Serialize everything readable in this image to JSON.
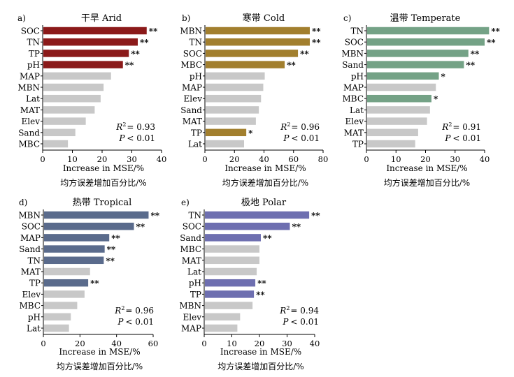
{
  "chart_data": [
    {
      "type": "bar",
      "orientation": "horizontal",
      "panel": "a)",
      "title": "干旱 Arid",
      "categories": [
        "SOC",
        "TN",
        "TP",
        "pH",
        "MAP",
        "MBN",
        "Lat",
        "MAT",
        "Elev",
        "Sand",
        "MBC"
      ],
      "values": [
        35,
        32,
        29,
        27,
        23,
        20.5,
        19.5,
        17.5,
        14.5,
        11,
        8.5
      ],
      "significance": [
        "**",
        "**",
        "**",
        "**",
        "",
        "",
        "",
        "",
        "",
        "",
        ""
      ],
      "xlim": [
        0,
        40
      ],
      "xticks": [
        0,
        10,
        20,
        30,
        40
      ],
      "xlabel": "Increase in MSE/%",
      "xlabel_cn": "均方误差增加百分比/%",
      "r2_label": "R",
      "r2_exp": "2",
      "r2_value": "= 0.93",
      "p_label": "P",
      "p_value": "< 0.01",
      "color": "#8b1a1a"
    },
    {
      "type": "bar",
      "orientation": "horizontal",
      "panel": "b)",
      "title": "寒带 Cold",
      "categories": [
        "MBN",
        "TN",
        "SOC",
        "MBC",
        "pH",
        "MAP",
        "Elev",
        "Sand",
        "MAT",
        "TP",
        "Lat"
      ],
      "values": [
        71,
        71,
        63,
        54,
        40.5,
        39.5,
        38,
        36.5,
        34.5,
        28,
        26.5
      ],
      "significance": [
        "**",
        "**",
        "**",
        "**",
        "",
        "",
        "",
        "",
        "",
        "*",
        ""
      ],
      "xlim": [
        0,
        80
      ],
      "xticks": [
        0,
        20,
        40,
        60,
        80
      ],
      "xlabel": "Increase in MSE/%",
      "xlabel_cn": "均方误差增加百分比/%",
      "r2_label": "R",
      "r2_exp": "2",
      "r2_value": "= 0.96",
      "p_label": "P",
      "p_value": "< 0.01",
      "color": "#a27f2e"
    },
    {
      "type": "bar",
      "orientation": "horizontal",
      "panel": "c)",
      "title": "温带 Temperate",
      "categories": [
        "TN",
        "SOC",
        "MBN",
        "Sand",
        "pH",
        "MAP",
        "MBC",
        "Lat",
        "Elev",
        "MAT",
        "TP"
      ],
      "values": [
        41.5,
        40,
        34.5,
        33,
        24.5,
        23.5,
        22,
        21.5,
        20.5,
        17.5,
        16.5
      ],
      "significance": [
        "**",
        "**",
        "**",
        "**",
        "*",
        "",
        "*",
        "",
        "",
        "",
        ""
      ],
      "xlim": [
        0,
        40
      ],
      "xticks": [
        0,
        10,
        20,
        30,
        40
      ],
      "xlabel": "Increase in MSE/%",
      "xlabel_cn": "均方误差增加百分比/%",
      "r2_label": "R",
      "r2_exp": "2",
      "r2_value": "= 0.91",
      "p_label": "P",
      "p_value": "< 0.01",
      "color": "#74a286"
    },
    {
      "type": "bar",
      "orientation": "horizontal",
      "panel": "d)",
      "title": "热带 Tropical",
      "categories": [
        "MBN",
        "SOC",
        "MAP",
        "Sand",
        "TN",
        "MAT",
        "TP",
        "Elev",
        "MBC",
        "pH",
        "Lat"
      ],
      "values": [
        57.5,
        49.5,
        36,
        33.5,
        33,
        25.5,
        24.5,
        22.5,
        18.5,
        15,
        14
      ],
      "significance": [
        "**",
        "**",
        "**",
        "**",
        "**",
        "",
        "**",
        "",
        "",
        "",
        ""
      ],
      "xlim": [
        0,
        60
      ],
      "xticks": [
        0,
        20,
        40,
        60
      ],
      "xlabel": "Increase in MSE/%",
      "xlabel_cn": "均方误差增加百分比/%",
      "r2_label": "R",
      "r2_exp": "2",
      "r2_value": "= 0.96",
      "p_label": "P",
      "p_value": "< 0.01",
      "color": "#5a6b8c"
    },
    {
      "type": "bar",
      "orientation": "horizontal",
      "panel": "e)",
      "title": "极地 Polar",
      "categories": [
        "TN",
        "SOC",
        "Sand",
        "MBC",
        "MAT",
        "Lat",
        "pH",
        "TP",
        "MBN",
        "Elev",
        "MAP"
      ],
      "values": [
        38,
        31,
        20.5,
        20,
        20,
        19,
        18.5,
        18,
        17.5,
        13,
        12
      ],
      "significance": [
        "**",
        "**",
        "**",
        "",
        "",
        "",
        "**",
        "**",
        "",
        "",
        ""
      ],
      "xlim": [
        0,
        40
      ],
      "xticks": [
        0,
        10,
        20,
        30,
        40
      ],
      "xlabel": "Increase in MSE/%",
      "xlabel_cn": "均方误差增加百分比/%",
      "r2_label": "R",
      "r2_exp": "2",
      "r2_value": "= 0.94",
      "p_label": "P",
      "p_value": "< 0.01",
      "color": "#6e6fb0"
    }
  ],
  "colors": {
    "nonsignificant": "#c8c8c8",
    "axis": "#000000"
  }
}
